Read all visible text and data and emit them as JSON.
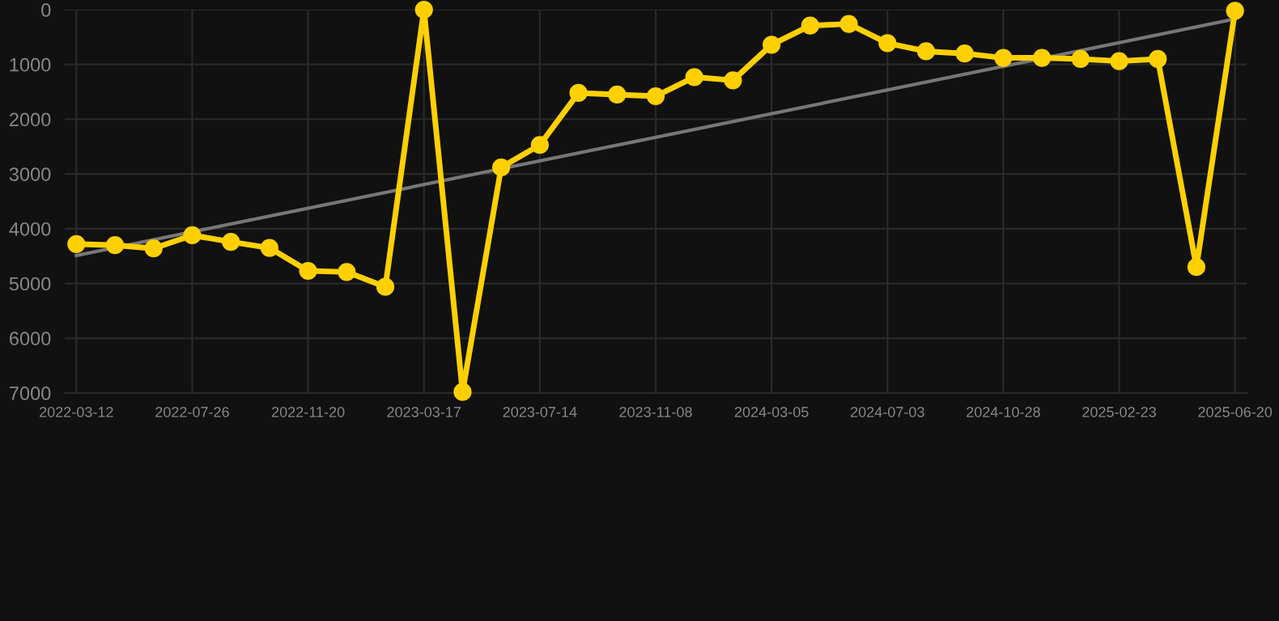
{
  "chart_data": {
    "type": "line",
    "categories": [
      "2022-03-12",
      null,
      null,
      "2022-07-26",
      null,
      null,
      "2022-11-20",
      null,
      null,
      "2023-03-17",
      null,
      null,
      "2023-07-14",
      null,
      null,
      "2023-11-08",
      null,
      null,
      "2024-03-05",
      null,
      null,
      "2024-07-03",
      null,
      null,
      "2024-10-28",
      null,
      null,
      "2025-02-23",
      null,
      null,
      "2025-06-20"
    ],
    "series": [
      {
        "color": "#ffd000",
        "marker": "circle",
        "values": [
          4280,
          4300,
          4360,
          4120,
          4240,
          4350,
          4770,
          4790,
          5060,
          0,
          6980,
          2880,
          2470,
          1520,
          1550,
          1580,
          1230,
          1290,
          640,
          290,
          260,
          610,
          760,
          800,
          880,
          880,
          900,
          940,
          900,
          4700,
          20
        ]
      },
      {
        "type": "line",
        "color": "#777777",
        "marker": "none",
        "values": [
          4490,
          null,
          null,
          null,
          null,
          null,
          null,
          null,
          null,
          null,
          null,
          null,
          null,
          null,
          null,
          null,
          null,
          null,
          null,
          null,
          null,
          null,
          null,
          null,
          null,
          null,
          null,
          null,
          null,
          null,
          170
        ]
      }
    ],
    "ylim": [
      7000,
      0
    ],
    "yticks": [
      0,
      1000,
      2000,
      3000,
      4000,
      5000,
      6000,
      7000
    ],
    "grid": true
  }
}
